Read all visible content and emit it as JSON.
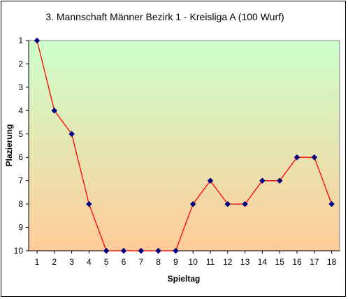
{
  "chart_data": {
    "type": "line",
    "title": "3. Mannschaft Männer Bezirk 1 - Kreisliga A  (100 Wurf)",
    "xlabel": "Spieltag",
    "ylabel": "Plazierung",
    "x": [
      1,
      2,
      3,
      4,
      5,
      6,
      7,
      8,
      9,
      10,
      11,
      12,
      13,
      14,
      15,
      16,
      17,
      18
    ],
    "x_tick_labels": [
      "1",
      "2",
      "3",
      "4",
      "5",
      "6",
      "7",
      "8",
      "9",
      "10",
      "11",
      "12",
      "13",
      "14",
      "15",
      "16",
      "17",
      "18"
    ],
    "y_tick_labels": [
      "1",
      "2",
      "3",
      "4",
      "5",
      "6",
      "7",
      "8",
      "9",
      "10"
    ],
    "ylim": [
      1,
      10
    ],
    "y_axis_inverted": true,
    "grid": false,
    "legend": "none",
    "series": [
      {
        "values": [
          1,
          4,
          5,
          8,
          10,
          10,
          10,
          10,
          10,
          8,
          7,
          8,
          8,
          7,
          7,
          6,
          6,
          8
        ]
      }
    ],
    "colors": {
      "line": "#ff0000",
      "marker": "#000080",
      "plot_gradient_top": "#ccffcc",
      "plot_gradient_bottom": "#ffcc99"
    }
  }
}
